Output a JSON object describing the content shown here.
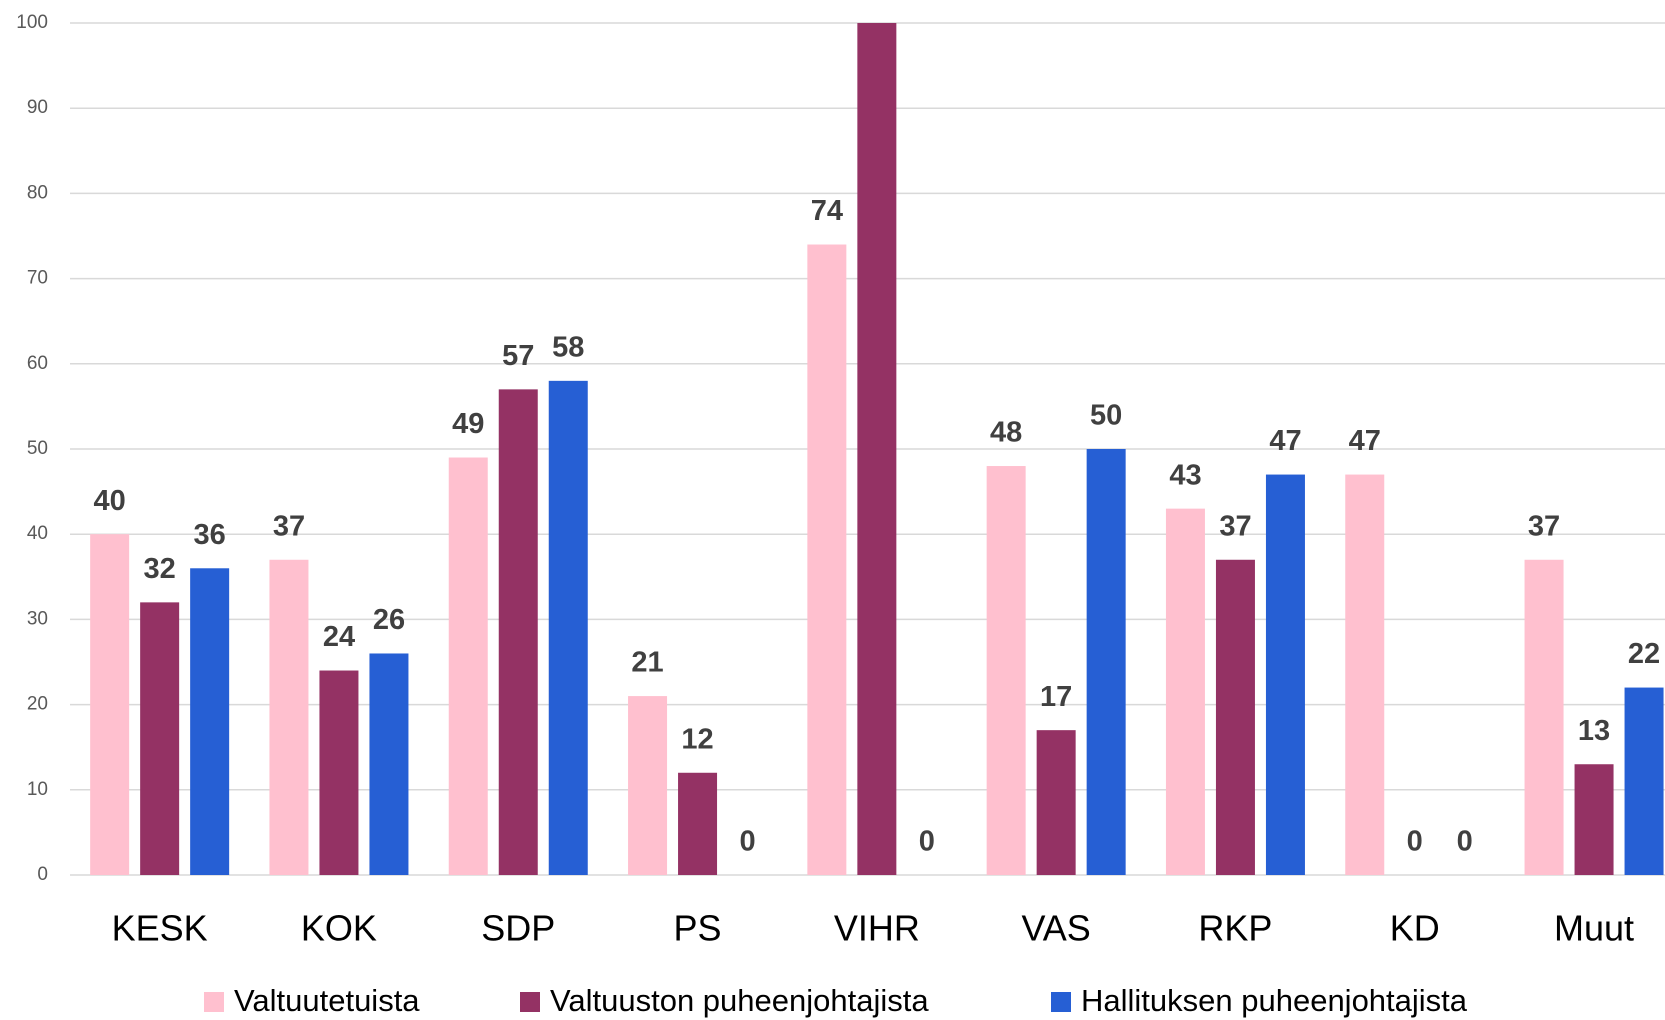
{
  "chart_data": {
    "type": "bar",
    "categories": [
      "KESK",
      "KOK",
      "SDP",
      "PS",
      "VIHR",
      "VAS",
      "RKP",
      "KD",
      "Muut"
    ],
    "series": [
      {
        "name": "Valtuutetuista",
        "color": "#ffc0cf",
        "values": [
          40,
          37,
          49,
          21,
          74,
          48,
          43,
          47,
          37
        ]
      },
      {
        "name": "Valtuuston puheenjohtajista",
        "color": "#943264",
        "values": [
          32,
          24,
          57,
          12,
          100,
          17,
          37,
          0,
          13
        ]
      },
      {
        "name": "Hallituksen puheenjohtajista",
        "color": "#265fd4",
        "values": [
          36,
          26,
          58,
          0,
          0,
          50,
          47,
          0,
          22
        ]
      }
    ],
    "ylim": [
      0,
      100
    ],
    "yticks": [
      0,
      10,
      20,
      30,
      40,
      50,
      60,
      70,
      80,
      90,
      100
    ],
    "grid": true,
    "legend": "bottom"
  }
}
